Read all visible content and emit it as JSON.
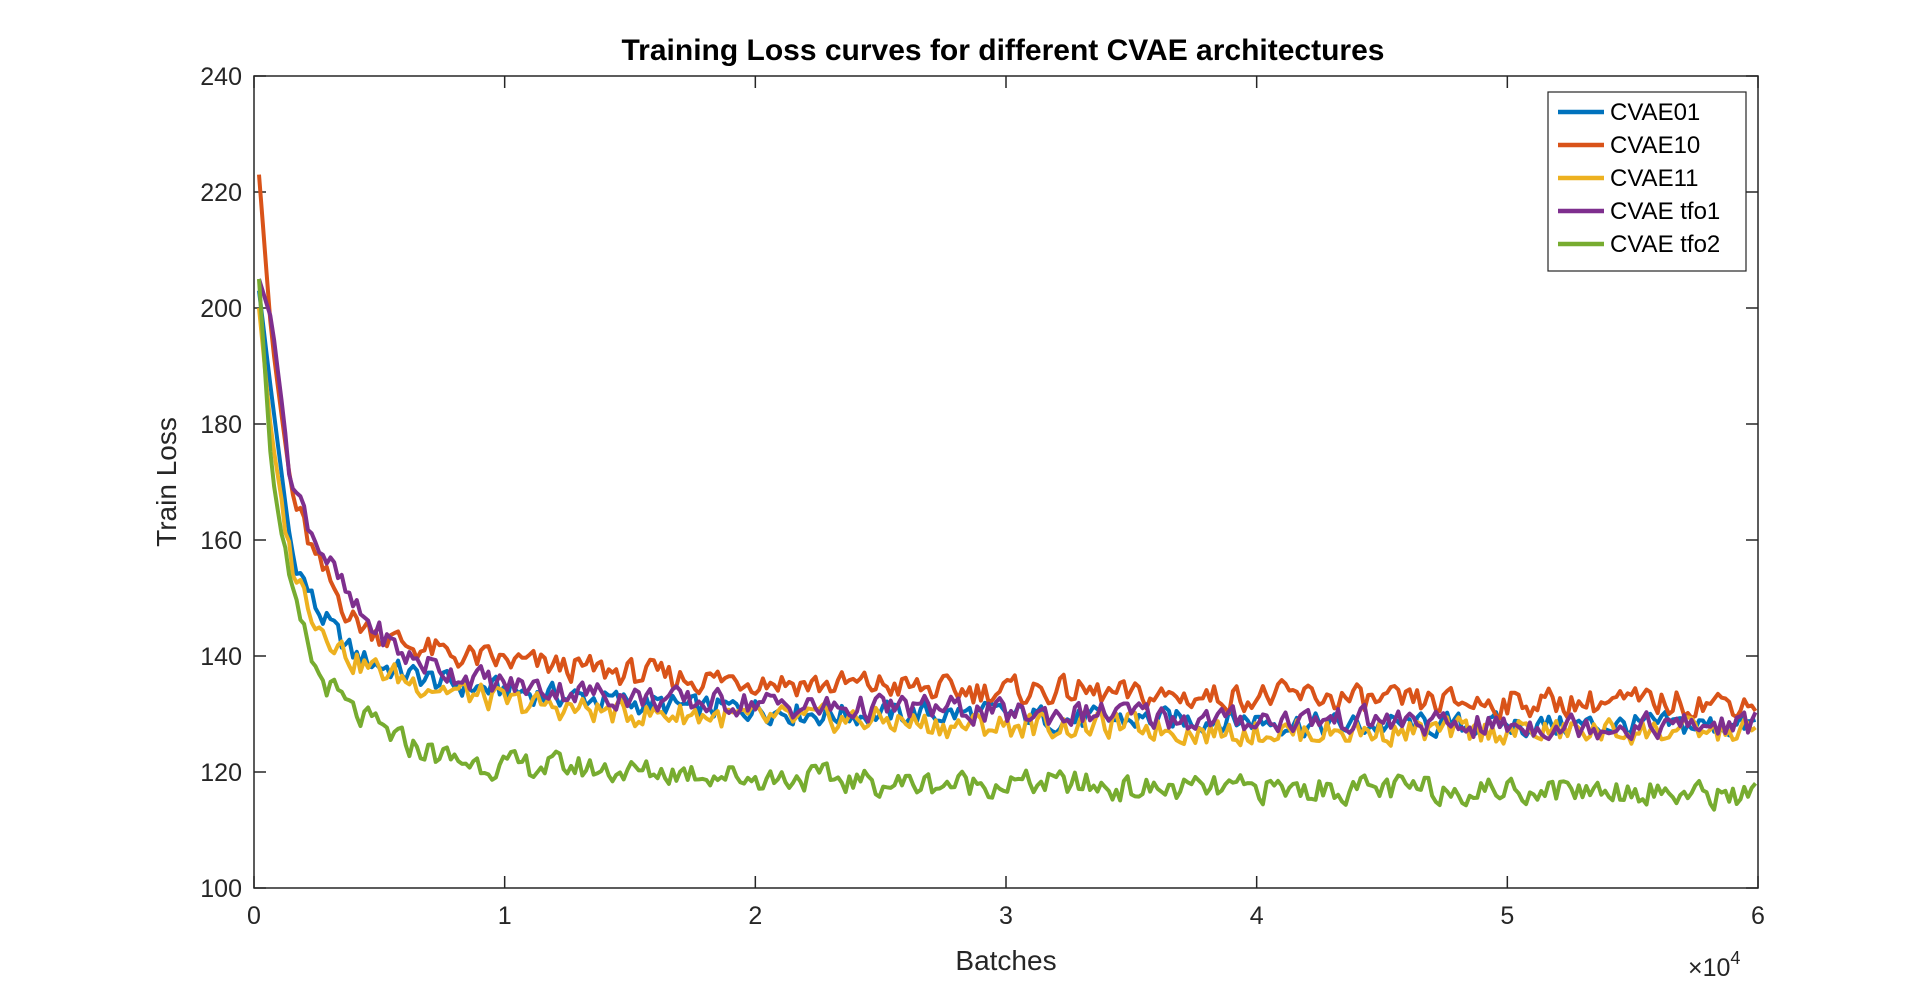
{
  "chart_data": {
    "type": "line",
    "title": "Training Loss curves for different CVAE architectures",
    "xlabel": "Batches",
    "ylabel": "Train Loss",
    "x_exponent_label": "×10",
    "x_exponent": "4",
    "xlim": [
      0,
      60000
    ],
    "ylim": [
      100,
      240
    ],
    "xticks": [
      0,
      10000,
      20000,
      30000,
      40000,
      50000,
      60000
    ],
    "xtick_labels": [
      "0",
      "1",
      "2",
      "3",
      "4",
      "5",
      "6"
    ],
    "yticks": [
      100,
      120,
      140,
      160,
      180,
      200,
      220,
      240
    ],
    "grid": false,
    "legend_position": "top-right",
    "series": [
      {
        "name": "CVAE01",
        "color": "#0072BD",
        "x": [
          200,
          700,
          1500,
          2500,
          4000,
          6000,
          8000,
          10000,
          12500,
          15000,
          17500,
          20000,
          22500,
          25000,
          27500,
          30000,
          32500,
          35000,
          37500,
          40000,
          42500,
          45000,
          47500,
          50000,
          52500,
          55000,
          57500,
          60000
        ],
        "y": [
          203,
          185,
          158,
          148,
          140,
          137,
          135,
          134,
          133,
          132,
          131,
          131,
          130,
          130,
          130,
          130,
          129,
          129,
          129,
          129,
          128,
          128,
          128,
          128,
          128,
          128,
          128,
          128
        ]
      },
      {
        "name": "CVAE10",
        "color": "#D95319",
        "x": [
          200,
          700,
          1500,
          2500,
          4000,
          6000,
          8000,
          10000,
          12500,
          15000,
          17500,
          20000,
          22500,
          25000,
          27500,
          30000,
          32500,
          35000,
          37500,
          40000,
          42500,
          45000,
          47500,
          50000,
          52500,
          55000,
          57500,
          60000
        ],
        "y": [
          223,
          195,
          168,
          156,
          146,
          142,
          140,
          139,
          138,
          137,
          136,
          136,
          135,
          135,
          134,
          134,
          134,
          133,
          133,
          133,
          133,
          132,
          132,
          132,
          132,
          132,
          132,
          132
        ]
      },
      {
        "name": "CVAE11",
        "color": "#EDB120",
        "x": [
          200,
          700,
          1500,
          2500,
          4000,
          6000,
          8000,
          10000,
          12500,
          15000,
          17500,
          20000,
          22500,
          25000,
          27500,
          30000,
          32500,
          35000,
          37500,
          40000,
          42500,
          45000,
          47500,
          50000,
          52500,
          55000,
          57500,
          60000
        ],
        "y": [
          200,
          178,
          156,
          146,
          139,
          136,
          134,
          132,
          131,
          130,
          130,
          129,
          129,
          129,
          128,
          128,
          128,
          128,
          127,
          127,
          127,
          127,
          127,
          127,
          127,
          127,
          127,
          127
        ]
      },
      {
        "name": "CVAE tfo1",
        "color": "#7E2F8E",
        "x": [
          200,
          700,
          1500,
          2500,
          4000,
          6000,
          8000,
          10000,
          12500,
          15000,
          17500,
          20000,
          22500,
          25000,
          27500,
          30000,
          32500,
          35000,
          37500,
          40000,
          42500,
          45000,
          47500,
          50000,
          52500,
          55000,
          57500,
          60000
        ],
        "y": [
          205,
          198,
          170,
          160,
          148,
          140,
          137,
          135,
          134,
          133,
          132,
          132,
          131,
          131,
          131,
          130,
          130,
          130,
          129,
          129,
          129,
          129,
          128,
          128,
          128,
          128,
          128,
          128
        ]
      },
      {
        "name": "CVAE tfo2",
        "color": "#77AC30",
        "x": [
          200,
          700,
          1500,
          2500,
          4000,
          6000,
          8000,
          10000,
          12500,
          15000,
          17500,
          20000,
          22500,
          25000,
          27500,
          30000,
          32500,
          35000,
          37500,
          40000,
          42500,
          45000,
          47500,
          50000,
          52500,
          55000,
          57500,
          60000
        ],
        "y": [
          205,
          172,
          150,
          137,
          130,
          125,
          122,
          121,
          121,
          120,
          120,
          119,
          119,
          118,
          118,
          118,
          118,
          117,
          117,
          117,
          117,
          117,
          117,
          117,
          117,
          117,
          116,
          116
        ]
      }
    ]
  }
}
